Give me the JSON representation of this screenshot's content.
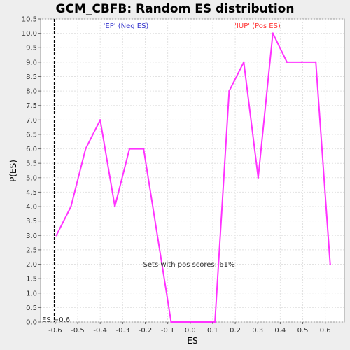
{
  "chart_data": {
    "type": "line",
    "title": "GCM_CBFB: Random ES distribution",
    "xlabel": "ES",
    "ylabel": "P(ES)",
    "xlim": [
      -0.665,
      0.685
    ],
    "ylim": [
      0,
      10.5
    ],
    "x_ticks": [
      -0.6,
      -0.5,
      -0.4,
      -0.3,
      -0.2,
      -0.1,
      0.0,
      0.1,
      0.2,
      0.3,
      0.4,
      0.5,
      0.6
    ],
    "x_tick_labels": [
      "-0.6",
      "-0.5",
      "-0.4",
      "-0.3",
      "-0.2",
      "-0.1",
      "0.0",
      "0.1",
      "0.2",
      "0.3",
      "0.4",
      "0.5",
      "0.6"
    ],
    "y_ticks": [
      0,
      0.5,
      1,
      1.5,
      2,
      2.5,
      3,
      3.5,
      4,
      4.5,
      5,
      5.5,
      6,
      6.5,
      7,
      7.5,
      8,
      8.5,
      9,
      9.5,
      10,
      10.5
    ],
    "y_tick_labels": [
      "0.0",
      "0.5",
      "1.0",
      "1.5",
      "2.0",
      "2.5",
      "3.0",
      "3.5",
      "4.0",
      "4.5",
      "5.0",
      "5.5",
      "6.0",
      "6.5",
      "7.0",
      "7.5",
      "8.0",
      "8.5",
      "9.0",
      "9.5",
      "10.0",
      "10.5"
    ],
    "grid": true,
    "series": [
      {
        "color": "#ff33ff",
        "x": [
          -0.595,
          -0.53,
          -0.465,
          -0.4,
          -0.335,
          -0.27,
          -0.207,
          -0.085,
          -0.02,
          0.045,
          0.11,
          0.173,
          0.238,
          0.302,
          0.367,
          0.43,
          0.495,
          0.558,
          0.622
        ],
        "y": [
          3,
          4,
          6,
          7,
          4,
          6,
          6,
          0,
          0,
          0,
          0,
          8,
          9,
          5,
          10,
          9,
          9,
          9,
          2
        ]
      }
    ],
    "marker_line": {
      "x": -0.6,
      "color": "#000000",
      "label": "ES −0.6"
    },
    "annotations": [
      {
        "text": "'EP' (Neg ES)",
        "color": "#3333cc"
      },
      {
        "text": "'IUP' (Pos ES)",
        "color": "#ff3333"
      },
      {
        "text": "Sets with pos scores: 61%",
        "color": "#333333"
      }
    ]
  }
}
